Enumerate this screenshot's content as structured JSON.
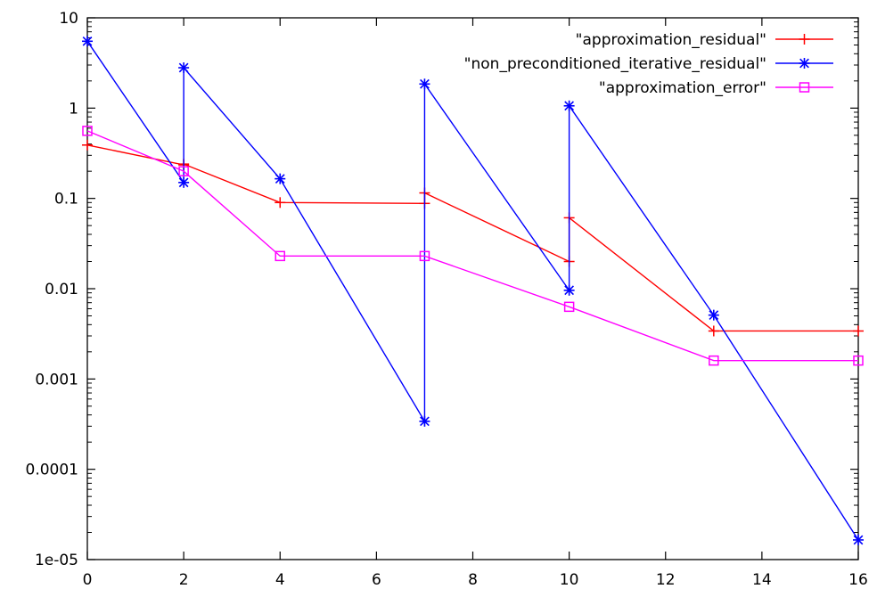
{
  "chart_data": {
    "type": "line",
    "x_axis": {
      "range": [
        0,
        16
      ],
      "ticks": [
        0,
        2,
        4,
        6,
        8,
        10,
        12,
        14,
        16
      ],
      "tick_labels": [
        "0",
        "2",
        "4",
        "6",
        "8",
        "10",
        "12",
        "14",
        "16"
      ],
      "label": ""
    },
    "y_axis": {
      "scale": "log",
      "range": [
        1e-05,
        10
      ],
      "ticks": [
        1e-05,
        0.0001,
        0.001,
        0.01,
        0.1,
        1,
        10
      ],
      "tick_labels": [
        "1e-05",
        "0.0001",
        "0.001",
        "0.01",
        "0.1",
        "1",
        "10"
      ],
      "label": ""
    },
    "grid": false,
    "legend_position": "top-right",
    "series": [
      {
        "name": "\"approximation_residual\"",
        "color": "#ff0000",
        "marker": "plus",
        "points": [
          [
            0,
            0.39
          ],
          [
            2,
            0.235
          ],
          [
            2,
            0.24
          ],
          [
            4,
            0.09
          ],
          [
            7,
            0.088
          ],
          [
            7,
            0.115
          ],
          [
            10,
            0.02
          ],
          [
            10,
            0.061
          ],
          [
            13,
            0.0034
          ],
          [
            16,
            0.0034
          ]
        ]
      },
      {
        "name": "\"non_preconditioned_iterative_residual\"",
        "color": "#0000ff",
        "marker": "star",
        "points": [
          [
            0,
            5.5
          ],
          [
            2,
            0.15
          ],
          [
            2,
            2.8
          ],
          [
            4,
            0.165
          ],
          [
            7,
            0.00034
          ],
          [
            7,
            1.85
          ],
          [
            10,
            0.0096
          ],
          [
            10,
            1.06
          ],
          [
            13,
            0.0051
          ],
          [
            16,
            1.65e-05
          ]
        ]
      },
      {
        "name": "\"approximation_error\"",
        "color": "#ff00ff",
        "marker": "square",
        "points": [
          [
            0,
            0.56
          ],
          [
            2,
            0.2
          ],
          [
            4,
            0.023
          ],
          [
            7,
            0.023
          ],
          [
            10,
            0.0063
          ],
          [
            13,
            0.0016
          ],
          [
            16,
            0.0016
          ]
        ]
      }
    ]
  }
}
